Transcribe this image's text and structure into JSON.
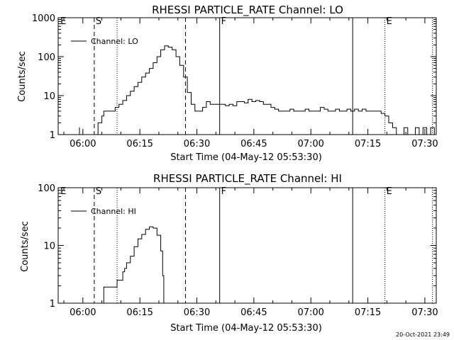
{
  "footer": {
    "timestamp": "20-Oct-2021 23:49"
  },
  "chart_data": [
    {
      "type": "line",
      "title": "RHESSI PARTICLE_RATE Channel: LO",
      "xlabel": "Start Time (04-May-12 05:53:30)",
      "ylabel": "Counts/sec",
      "x_unit": "minutes after 05:53:30",
      "xlim": [
        0,
        99.5
      ],
      "ylim": [
        1,
        1000
      ],
      "y_scale": "log",
      "grid": false,
      "legend_position": "top-left",
      "xticks": [
        {
          "label": "06:00",
          "x": 6.5
        },
        {
          "label": "06:15",
          "x": 21.5
        },
        {
          "label": "06:30",
          "x": 36.5
        },
        {
          "label": "06:45",
          "x": 51.5
        },
        {
          "label": "07:00",
          "x": 66.5
        },
        {
          "label": "07:15",
          "x": 81.5
        },
        {
          "label": "07:30",
          "x": 96.5
        }
      ],
      "yticks": [
        {
          "label": "1",
          "y": 1
        },
        {
          "label": "10",
          "y": 10
        },
        {
          "label": "100",
          "y": 100
        },
        {
          "label": "1000",
          "y": 1000
        }
      ],
      "markers": [
        {
          "label": "E",
          "x": 0.2,
          "style": "none"
        },
        {
          "label": "S",
          "x": 9.5,
          "style": "dashed"
        },
        {
          "label": "",
          "x": 15.5,
          "style": "dotted"
        },
        {
          "label": "",
          "x": 33.5,
          "style": "dashed"
        },
        {
          "label": "F",
          "x": 42.5,
          "style": "solid"
        },
        {
          "label": "",
          "x": 77.5,
          "style": "solid"
        },
        {
          "label": "E",
          "x": 86.0,
          "style": "dotted"
        },
        {
          "label": "",
          "x": 98.5,
          "style": "dotted"
        }
      ],
      "series": [
        {
          "name": "Channel: LO",
          "x": [
            5.5,
            5.6,
            5.8,
            9.5,
            10.5,
            11.5,
            12.0,
            13.0,
            14.0,
            15.0,
            16.0,
            17.0,
            18.0,
            19.0,
            20.0,
            21.0,
            22.0,
            23.0,
            24.0,
            25.0,
            26.0,
            27.0,
            28.0,
            29.0,
            30.0,
            31.0,
            32.0,
            33.0,
            34.0,
            35.0,
            36.0,
            37.0,
            38.0,
            39.0,
            40.0,
            41.0,
            42.0,
            43.0,
            44.0,
            45.0,
            46.0,
            47.0,
            48.0,
            49.0,
            50.0,
            51.0,
            52.0,
            53.0,
            54.0,
            55.0,
            56.0,
            57.0,
            58.0,
            59.0,
            60.0,
            61.0,
            62.0,
            63.0,
            64.0,
            65.0,
            66.0,
            67.0,
            68.0,
            69.0,
            70.0,
            71.0,
            72.0,
            73.0,
            74.0,
            75.0,
            76.0,
            77.0,
            78.0,
            79.0,
            80.0,
            81.0,
            82.0,
            83.0,
            84.0,
            85.0,
            86.0,
            87.0,
            88.0,
            89.0,
            90.0,
            91.0,
            92.0,
            93.0,
            94.0,
            95.0,
            96.0,
            97.0,
            98.0,
            99.0
          ],
          "y": [
            1.5,
            1.0,
            1.0,
            1.0,
            2.0,
            3.0,
            4.0,
            4.0,
            4.0,
            5.0,
            6.0,
            7.5,
            10.0,
            13.0,
            17.0,
            22.0,
            30.0,
            38.0,
            50.0,
            70.0,
            100.0,
            150.0,
            190.0,
            175.0,
            150.0,
            100.0,
            60.0,
            30.0,
            12.0,
            6.0,
            4.0,
            4.0,
            5.0,
            7.0,
            6.0,
            6.0,
            6.0,
            6.0,
            5.5,
            6.0,
            5.5,
            7.0,
            7.0,
            6.5,
            8.0,
            7.0,
            7.5,
            7.0,
            6.0,
            6.0,
            5.0,
            4.5,
            4.0,
            4.0,
            4.0,
            4.5,
            4.0,
            4.0,
            4.0,
            4.5,
            4.0,
            4.0,
            4.0,
            5.0,
            4.5,
            4.0,
            4.0,
            4.5,
            4.0,
            4.0,
            4.5,
            4.0,
            4.5,
            4.0,
            4.5,
            4.0,
            4.0,
            4.0,
            4.0,
            3.5,
            3.0,
            2.0,
            1.5,
            1.0,
            1.0,
            1.5,
            1.0,
            1.0,
            1.5,
            1.0,
            1.5,
            1.0,
            1.5,
            1.0
          ]
        }
      ]
    },
    {
      "type": "line",
      "title": "RHESSI PARTICLE_RATE Channel: HI",
      "xlabel": "Start Time (04-May-12 05:53:30)",
      "ylabel": "Counts/sec",
      "x_unit": "minutes after 05:53:30",
      "xlim": [
        0,
        99.5
      ],
      "ylim": [
        1,
        100
      ],
      "y_scale": "log",
      "grid": false,
      "legend_position": "top-left",
      "xticks": [
        {
          "label": "06:00",
          "x": 6.5
        },
        {
          "label": "06:15",
          "x": 21.5
        },
        {
          "label": "06:30",
          "x": 36.5
        },
        {
          "label": "06:45",
          "x": 51.5
        },
        {
          "label": "07:00",
          "x": 66.5
        },
        {
          "label": "07:15",
          "x": 81.5
        },
        {
          "label": "07:30",
          "x": 96.5
        }
      ],
      "yticks": [
        {
          "label": "1",
          "y": 1
        },
        {
          "label": "10",
          "y": 10
        },
        {
          "label": "100",
          "y": 100
        }
      ],
      "markers": [
        {
          "label": "E",
          "x": 0.2,
          "style": "none"
        },
        {
          "label": "S",
          "x": 9.5,
          "style": "dashed"
        },
        {
          "label": "",
          "x": 15.5,
          "style": "dotted"
        },
        {
          "label": "",
          "x": 33.5,
          "style": "dashed"
        },
        {
          "label": "F",
          "x": 42.5,
          "style": "solid"
        },
        {
          "label": "",
          "x": 77.5,
          "style": "solid"
        },
        {
          "label": "E",
          "x": 86.0,
          "style": "dotted"
        },
        {
          "label": "",
          "x": 98.5,
          "style": "dotted"
        }
      ],
      "series": [
        {
          "name": "Channel: HI",
          "x": [
            11.5,
            12.0,
            13.0,
            15.0,
            15.5,
            16.0,
            17.0,
            17.5,
            18.0,
            19.0,
            20.0,
            21.0,
            22.0,
            23.0,
            24.0,
            25.0,
            26.0,
            27.0,
            27.5,
            27.8
          ],
          "y": [
            1.0,
            1.9,
            1.9,
            1.9,
            2.5,
            2.5,
            3.5,
            4.0,
            5.0,
            6.5,
            9.5,
            13.0,
            15.5,
            19.0,
            21.0,
            20.0,
            15.0,
            8.0,
            3.0,
            1.0
          ]
        }
      ]
    }
  ]
}
